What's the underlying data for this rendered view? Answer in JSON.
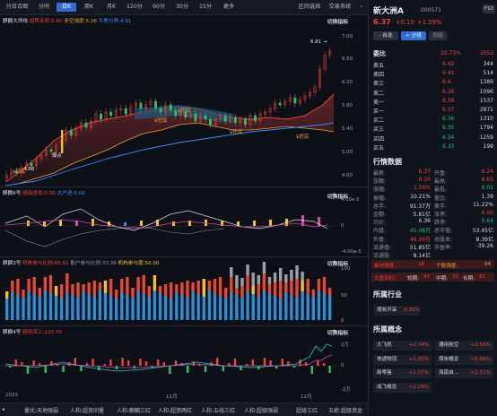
{
  "toolbar": {
    "items": [
      "分日合图",
      "分时",
      "日K",
      "周K",
      "月K",
      "120分",
      "60分",
      "30分",
      "15分",
      "更多"
    ],
    "active": "日K",
    "right_items": [
      "区间选择",
      "交易系统"
    ]
  },
  "main_chart": {
    "title": "麒麟大师线",
    "indicators": [
      {
        "label": "趋势反转:5.80",
        "color": "#f0413c"
      },
      {
        "label": "多空强度:5.26",
        "color": "#e8a23c"
      },
      {
        "label": "牛熊分界:4.91",
        "color": "#3d8bff"
      }
    ],
    "switch_label": "切换指标",
    "y_ticks": [
      "7.00",
      "6.60",
      "6.20",
      "5.80",
      "5.40",
      "5.00",
      "4.60"
    ],
    "high_label": "6.81",
    "low_label": "4.68",
    "annotations": [
      {
        "text": "$挖底",
        "color": "#e8a23c"
      },
      {
        "text": "$挖底",
        "color": "#e8a23c"
      },
      {
        "text": "$挖底",
        "color": "#e8a23c"
      },
      {
        "text": "$挖底",
        "color": "#e8a23c"
      },
      {
        "text": "爆点",
        "color": "#e8e8e8"
      },
      {
        "text": "$挖底",
        "color": "#e8a23c"
      }
    ]
  },
  "panel2": {
    "title": "麒麟6号",
    "indicators": [
      {
        "label": "超级进攻:0.00",
        "color": "#f0413c"
      },
      {
        "label": "大户进:0.00",
        "color": "#3d8bff"
      }
    ],
    "switch_label": "切换指标",
    "y_ticks": [
      "4.00e-5",
      "0",
      "-4.00e-5"
    ]
  },
  "panel3": {
    "title": "麒麟3号",
    "indicators": [
      {
        "label": "机构参与比例:66.61",
        "color": "#f0413c"
      },
      {
        "label": "散户参与比例:33.39",
        "color": "#8d939e"
      },
      {
        "label": "机构参与度:50.00",
        "color": "#f2c12e"
      }
    ],
    "switch_label": "切换指标",
    "y_ticks": [
      "100",
      "50",
      "0"
    ]
  },
  "panel4": {
    "title": "麒麟4号",
    "indicators": [
      {
        "label": "超资流入:220.70",
        "color": "#f0413c"
      }
    ],
    "switch_label": "切换指标",
    "y_ticks": [
      "2万",
      "0",
      "-2万"
    ]
  },
  "x_axis": {
    "labels": [
      "2025",
      "11月",
      "12月"
    ]
  },
  "bottom_tabs": [
    "量化:天地强弱",
    "人和:超资间量",
    "人和:麒麟三红",
    "人和:超资两红",
    "人和:五线三红",
    "人和:超级强弱",
    "超级三红",
    "五绝:超级资金"
  ],
  "stock": {
    "name": "新大洲A",
    "code": "000571",
    "badge": "F10",
    "price": "6.37",
    "change": "+0.10",
    "pct": "+1.59%",
    "btn_self": "- 自选",
    "btn_group": "+ 分组",
    "btn_group2": "加组"
  },
  "order_book": {
    "ratio_label": "委比",
    "ratio_value": "20.73%",
    "ratio_diff": "2552",
    "asks": [
      {
        "label": "卖五",
        "price": "6.42",
        "vol": "344"
      },
      {
        "label": "卖四",
        "price": "6.41",
        "vol": "514"
      },
      {
        "label": "卖三",
        "price": "6.4",
        "vol": "1389"
      },
      {
        "label": "卖二",
        "price": "6.39",
        "vol": "1096"
      },
      {
        "label": "卖一",
        "price": "6.38",
        "vol": "1537"
      }
    ],
    "bids": [
      {
        "label": "买一",
        "price": "6.37",
        "vol": "2871"
      },
      {
        "label": "买二",
        "price": "6.36",
        "vol": "1310"
      },
      {
        "label": "买三",
        "price": "6.35",
        "vol": "1794"
      },
      {
        "label": "买四",
        "price": "6.34",
        "vol": "1259"
      },
      {
        "label": "买五",
        "price": "6.33",
        "vol": "198"
      }
    ]
  },
  "quote": {
    "title": "行情数据",
    "rows": [
      [
        {
          "k": "最新:",
          "v": "6.37",
          "c": "red"
        },
        {
          "k": "开盘:",
          "v": "6.24",
          "c": "red"
        }
      ],
      [
        {
          "k": "涨额:",
          "v": "0.10",
          "c": "red"
        },
        {
          "k": "最高:",
          "v": "6.65",
          "c": "red"
        }
      ],
      [
        {
          "k": "涨幅:",
          "v": "1.59%",
          "c": "red"
        },
        {
          "k": "最低:",
          "v": "6.01",
          "c": "green"
        }
      ],
      [
        {
          "k": "振幅:",
          "v": "10.21%",
          "c": "white"
        },
        {
          "k": "量比:",
          "v": "1.39",
          "c": "white"
        }
      ],
      [
        {
          "k": "总手:",
          "v": "91.37万",
          "c": "white"
        },
        {
          "k": "换手:",
          "v": "11.22%",
          "c": "white"
        }
      ],
      [
        {
          "k": "金额:",
          "v": "5.81亿",
          "c": "white"
        },
        {
          "k": "涨停:",
          "v": "6.90",
          "c": "red"
        }
      ],
      [
        {
          "k": "均价:",
          "v": "6.36",
          "c": "white"
        },
        {
          "k": "跌停:",
          "v": "5.64",
          "c": "green"
        }
      ],
      [
        {
          "k": "内盘:",
          "v": "45.08万",
          "c": "green"
        },
        {
          "k": "总市值:",
          "v": "53.45亿",
          "c": "white"
        }
      ],
      [
        {
          "k": "外盘:",
          "v": "46.29万",
          "c": "red"
        },
        {
          "k": "总股本:",
          "v": "8.39亿",
          "c": "white"
        }
      ],
      [
        {
          "k": "流通值:",
          "v": "51.85亿",
          "c": "white"
        },
        {
          "k": "市盈率:",
          "v": "-39.26",
          "c": "white"
        }
      ],
      [
        {
          "k": "流通股:",
          "v": "8.14亿",
          "c": "white"
        },
        {
          "k": "",
          "v": "",
          "c": "white"
        }
      ]
    ],
    "sector_strength_label": "板块强度:",
    "sector_strength_value": "18",
    "stock_strength_label": "个股强度:",
    "stock_strength_value": "94",
    "bull_label": "大盘天时:",
    "bull_short": "短期:",
    "bull_short_v": "47",
    "bull_mid": "中期:",
    "bull_mid_v": "33",
    "bull_long": "长期:",
    "bull_long_v": "81"
  },
  "industry": {
    "title": "所属行业",
    "items": [
      {
        "name": "煤炭开采",
        "pct": "0.35%"
      }
    ]
  },
  "concepts": {
    "title": "所属概念",
    "items": [
      {
        "name": "大飞机",
        "pct": "+2.74%"
      },
      {
        "name": "通用航空",
        "pct": "+2.58%"
      },
      {
        "name": "快递物流",
        "pct": "+1.35%"
      },
      {
        "name": "煤炭概念",
        "pct": "+0.66%"
      },
      {
        "name": "新零售",
        "pct": "+1.07%"
      },
      {
        "name": "海南自...",
        "pct": "+1.51%"
      },
      {
        "name": "成飞概念",
        "pct": "+2.29%"
      }
    ]
  },
  "colors": {
    "up": "#f0413c",
    "down": "#2bc26a",
    "accent": "#2f6fd6",
    "bg": "#0d1017"
  }
}
